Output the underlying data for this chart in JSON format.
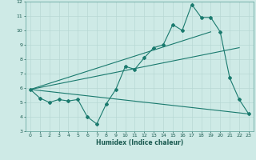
{
  "xlabel": "Humidex (Indice chaleur)",
  "bg_color": "#ceeae6",
  "grid_color": "#b8d8d4",
  "line_color": "#1a7a6e",
  "xlim": [
    -0.5,
    23.5
  ],
  "ylim": [
    3,
    12
  ],
  "xticks": [
    0,
    1,
    2,
    3,
    4,
    5,
    6,
    7,
    8,
    9,
    10,
    11,
    12,
    13,
    14,
    15,
    16,
    17,
    18,
    19,
    20,
    21,
    22,
    23
  ],
  "yticks": [
    3,
    4,
    5,
    6,
    7,
    8,
    9,
    10,
    11,
    12
  ],
  "series1_x": [
    0,
    1,
    2,
    3,
    4,
    5,
    6,
    7,
    8,
    9,
    10,
    11,
    12,
    13,
    14,
    15,
    16,
    17,
    18,
    19,
    20,
    21,
    22,
    23
  ],
  "series1_y": [
    5.9,
    5.3,
    5.0,
    5.2,
    5.1,
    5.2,
    4.0,
    3.5,
    4.9,
    5.9,
    7.5,
    7.3,
    8.1,
    8.8,
    9.0,
    10.4,
    10.0,
    11.8,
    10.9,
    10.9,
    9.9,
    6.7,
    5.2,
    4.2
  ],
  "series2_x": [
    0,
    19
  ],
  "series2_y": [
    5.9,
    9.9
  ],
  "series3_x": [
    0,
    22
  ],
  "series3_y": [
    5.9,
    8.8
  ],
  "series4_x": [
    0,
    23
  ],
  "series4_y": [
    5.9,
    4.2
  ]
}
